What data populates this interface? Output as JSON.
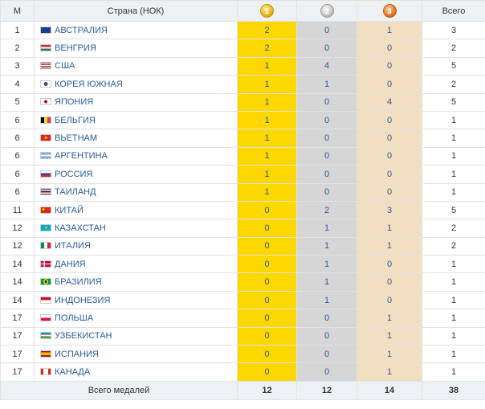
{
  "header": {
    "rank": "М",
    "country": "Страна (НОК)",
    "gold_icon": "gold-medal-icon",
    "silver_icon": "silver-medal-icon",
    "bronze_icon": "bronze-medal-icon",
    "gold_num": "1",
    "silver_num": "2",
    "bronze_num": "3",
    "total": "Всего"
  },
  "rows": [
    {
      "rank": "1",
      "country": "АВСТРАЛИЯ",
      "gold": "2",
      "silver": "0",
      "bronze": "1",
      "total": "3",
      "flag_icon": "australia-flag-icon"
    },
    {
      "rank": "2",
      "country": "ВЕНГРИЯ",
      "gold": "2",
      "silver": "0",
      "bronze": "0",
      "total": "2",
      "flag_icon": "hungary-flag-icon"
    },
    {
      "rank": "3",
      "country": "США",
      "gold": "1",
      "silver": "4",
      "bronze": "0",
      "total": "5",
      "flag_icon": "usa-flag-icon"
    },
    {
      "rank": "4",
      "country": "КОРЕЯ ЮЖНАЯ",
      "gold": "1",
      "silver": "1",
      "bronze": "0",
      "total": "2",
      "flag_icon": "south-korea-flag-icon"
    },
    {
      "rank": "5",
      "country": "ЯПОНИЯ",
      "gold": "1",
      "silver": "0",
      "bronze": "4",
      "total": "5",
      "flag_icon": "japan-flag-icon"
    },
    {
      "rank": "6",
      "country": "БЕЛЬГИЯ",
      "gold": "1",
      "silver": "0",
      "bronze": "0",
      "total": "1",
      "flag_icon": "belgium-flag-icon"
    },
    {
      "rank": "6",
      "country": "ВЬЕТНАМ",
      "gold": "1",
      "silver": "0",
      "bronze": "0",
      "total": "1",
      "flag_icon": "vietnam-flag-icon"
    },
    {
      "rank": "6",
      "country": "АРГЕНТИНА",
      "gold": "1",
      "silver": "0",
      "bronze": "0",
      "total": "1",
      "flag_icon": "argentina-flag-icon"
    },
    {
      "rank": "6",
      "country": "РОССИЯ",
      "gold": "1",
      "silver": "0",
      "bronze": "0",
      "total": "1",
      "flag_icon": "russia-flag-icon"
    },
    {
      "rank": "6",
      "country": "ТАИЛАНД",
      "gold": "1",
      "silver": "0",
      "bronze": "0",
      "total": "1",
      "flag_icon": "thailand-flag-icon"
    },
    {
      "rank": "11",
      "country": "КИТАЙ",
      "gold": "0",
      "silver": "2",
      "bronze": "3",
      "total": "5",
      "flag_icon": "china-flag-icon"
    },
    {
      "rank": "12",
      "country": "КАЗАХСТАН",
      "gold": "0",
      "silver": "1",
      "bronze": "1",
      "total": "2",
      "flag_icon": "kazakhstan-flag-icon"
    },
    {
      "rank": "12",
      "country": "ИТАЛИЯ",
      "gold": "0",
      "silver": "1",
      "bronze": "1",
      "total": "2",
      "flag_icon": "italy-flag-icon"
    },
    {
      "rank": "14",
      "country": "ДАНИЯ",
      "gold": "0",
      "silver": "1",
      "bronze": "0",
      "total": "1",
      "flag_icon": "denmark-flag-icon"
    },
    {
      "rank": "14",
      "country": "БРАЗИЛИЯ",
      "gold": "0",
      "silver": "1",
      "bronze": "0",
      "total": "1",
      "flag_icon": "brazil-flag-icon"
    },
    {
      "rank": "14",
      "country": "ИНДОНЕЗИЯ",
      "gold": "0",
      "silver": "1",
      "bronze": "0",
      "total": "1",
      "flag_icon": "indonesia-flag-icon"
    },
    {
      "rank": "17",
      "country": "ПОЛЬША",
      "gold": "0",
      "silver": "0",
      "bronze": "1",
      "total": "1",
      "flag_icon": "poland-flag-icon"
    },
    {
      "rank": "17",
      "country": "УЗБЕКИСТАН",
      "gold": "0",
      "silver": "0",
      "bronze": "1",
      "total": "1",
      "flag_icon": "uzbekistan-flag-icon"
    },
    {
      "rank": "17",
      "country": "ИСПАНИЯ",
      "gold": "0",
      "silver": "0",
      "bronze": "1",
      "total": "1",
      "flag_icon": "spain-flag-icon"
    },
    {
      "rank": "17",
      "country": "КАНАДА",
      "gold": "0",
      "silver": "0",
      "bronze": "1",
      "total": "1",
      "flag_icon": "canada-flag-icon"
    }
  ],
  "footer": {
    "label": "Всего медалей",
    "gold": "12",
    "silver": "12",
    "bronze": "14",
    "total": "38"
  },
  "colors": {
    "gold_cell": "#fcd700",
    "silver_cell": "#d6d6d6",
    "bronze_cell": "#f2dfc2",
    "link": "#2a5c9a",
    "header_bg": "#eef1f4"
  }
}
